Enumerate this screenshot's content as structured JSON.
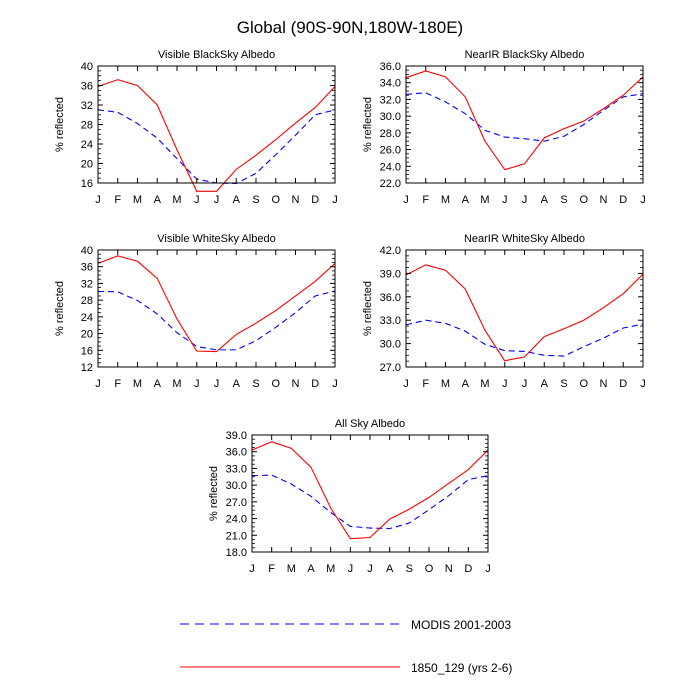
{
  "title": "Global (90S-90N,180W-180E)",
  "legend": {
    "placement": "bottom",
    "items": [
      {
        "label": "MODIS 2001-2003",
        "color": "#0000ff",
        "style": "dashed"
      },
      {
        "label": "1850_129 (yrs 2-6)",
        "color": "#ff0000",
        "style": "solid"
      }
    ]
  },
  "chart_data": [
    {
      "type": "line",
      "title": "Visible BlackSky Albedo",
      "ylabel": "% reflected",
      "categories": [
        "J",
        "F",
        "M",
        "A",
        "M",
        "J",
        "J",
        "A",
        "S",
        "O",
        "N",
        "D",
        "J"
      ],
      "ylim": [
        16,
        40
      ],
      "yticks": [
        16,
        20,
        24,
        28,
        32,
        36,
        40
      ],
      "ytick_labels": [
        "16",
        "20",
        "24",
        "28",
        "32",
        "36",
        "40"
      ],
      "series": [
        {
          "name": "MODIS 2001-2003",
          "color": "#0000ff",
          "dash": true,
          "values": [
            31.0,
            30.5,
            28.2,
            25.2,
            21.0,
            16.8,
            16.0,
            15.9,
            18.0,
            21.8,
            25.8,
            30.0,
            31.0
          ]
        },
        {
          "name": "1850_129 (yrs 2-6)",
          "color": "#ff0000",
          "dash": false,
          "values": [
            35.8,
            37.2,
            36.0,
            32.0,
            22.8,
            14.3,
            14.3,
            18.8,
            21.7,
            24.9,
            28.3,
            31.5,
            35.8
          ]
        }
      ]
    },
    {
      "type": "line",
      "title": "NearIR BlackSky Albedo",
      "ylabel": "% reflected",
      "categories": [
        "J",
        "F",
        "M",
        "A",
        "M",
        "J",
        "J",
        "A",
        "S",
        "O",
        "N",
        "D",
        "J"
      ],
      "ylim": [
        22,
        36
      ],
      "yticks": [
        22,
        24,
        26,
        28,
        30,
        32,
        34,
        36
      ],
      "ytick_labels": [
        "22.0",
        "24.0",
        "26.0",
        "28.0",
        "30.0",
        "32.0",
        "34.0",
        "36.0"
      ],
      "series": [
        {
          "name": "MODIS 2001-2003",
          "color": "#0000ff",
          "dash": true,
          "values": [
            32.6,
            32.8,
            31.7,
            30.3,
            28.3,
            27.5,
            27.3,
            27.0,
            27.6,
            29.0,
            30.7,
            32.3,
            32.7
          ]
        },
        {
          "name": "1850_129 (yrs 2-6)",
          "color": "#ff0000",
          "dash": false,
          "values": [
            34.6,
            35.4,
            34.7,
            32.3,
            27.0,
            23.6,
            24.3,
            27.4,
            28.5,
            29.4,
            30.9,
            32.5,
            34.7
          ]
        }
      ]
    },
    {
      "type": "line",
      "title": "Visible WhiteSky Albedo",
      "ylabel": "% reflected",
      "categories": [
        "J",
        "F",
        "M",
        "A",
        "M",
        "J",
        "J",
        "A",
        "S",
        "O",
        "N",
        "D",
        "J"
      ],
      "ylim": [
        12,
        40
      ],
      "yticks": [
        12,
        16,
        20,
        24,
        28,
        32,
        36,
        40
      ],
      "ytick_labels": [
        "12",
        "16",
        "20",
        "24",
        "28",
        "32",
        "36",
        "40"
      ],
      "series": [
        {
          "name": "MODIS 2001-2003",
          "color": "#0000ff",
          "dash": true,
          "values": [
            30.1,
            30.0,
            27.9,
            24.7,
            20.2,
            16.9,
            16.1,
            16.1,
            18.3,
            21.5,
            25.0,
            29.0,
            30.2
          ]
        },
        {
          "name": "1850_129 (yrs 2-6)",
          "color": "#ff0000",
          "dash": false,
          "values": [
            36.8,
            38.6,
            37.3,
            33.2,
            23.5,
            15.8,
            15.7,
            19.8,
            22.5,
            25.5,
            29.0,
            32.5,
            36.8
          ]
        }
      ]
    },
    {
      "type": "line",
      "title": "NearIR WhiteSky Albedo",
      "ylabel": "% reflected",
      "categories": [
        "J",
        "F",
        "M",
        "A",
        "M",
        "J",
        "J",
        "A",
        "S",
        "O",
        "N",
        "D",
        "J"
      ],
      "ylim": [
        27,
        42
      ],
      "yticks": [
        27,
        30,
        33,
        36,
        39,
        42
      ],
      "ytick_labels": [
        "27.0",
        "30.0",
        "33.0",
        "36.0",
        "39.0",
        "42.0"
      ],
      "series": [
        {
          "name": "MODIS 2001-2003",
          "color": "#0000ff",
          "dash": true,
          "values": [
            32.4,
            33.0,
            32.6,
            31.6,
            29.9,
            29.1,
            29.0,
            28.5,
            28.4,
            29.6,
            30.7,
            32.0,
            32.5
          ]
        },
        {
          "name": "1850_129 (yrs 2-6)",
          "color": "#ff0000",
          "dash": false,
          "values": [
            38.8,
            40.1,
            39.4,
            37.0,
            31.7,
            27.8,
            28.3,
            30.9,
            31.9,
            33.0,
            34.6,
            36.4,
            38.9
          ]
        }
      ]
    },
    {
      "type": "line",
      "title": "All Sky Albedo",
      "ylabel": "% reflected",
      "categories": [
        "J",
        "F",
        "M",
        "A",
        "M",
        "J",
        "J",
        "A",
        "S",
        "O",
        "N",
        "D",
        "J"
      ],
      "ylim": [
        18,
        39
      ],
      "yticks": [
        18,
        21,
        24,
        27,
        30,
        33,
        36,
        39
      ],
      "ytick_labels": [
        "18.0",
        "21.0",
        "24.0",
        "27.0",
        "30.0",
        "33.0",
        "36.0",
        "39.0"
      ],
      "series": [
        {
          "name": "MODIS 2001-2003",
          "color": "#0000ff",
          "dash": true,
          "values": [
            31.7,
            31.8,
            30.2,
            28.0,
            25.1,
            22.6,
            22.3,
            22.2,
            23.2,
            25.6,
            28.1,
            31.0,
            31.7
          ]
        },
        {
          "name": "1850_129 (yrs 2-6)",
          "color": "#ff0000",
          "dash": false,
          "values": [
            36.3,
            37.8,
            36.6,
            33.2,
            25.9,
            20.4,
            20.6,
            23.9,
            25.7,
            27.8,
            30.3,
            32.8,
            36.3
          ]
        }
      ]
    }
  ]
}
